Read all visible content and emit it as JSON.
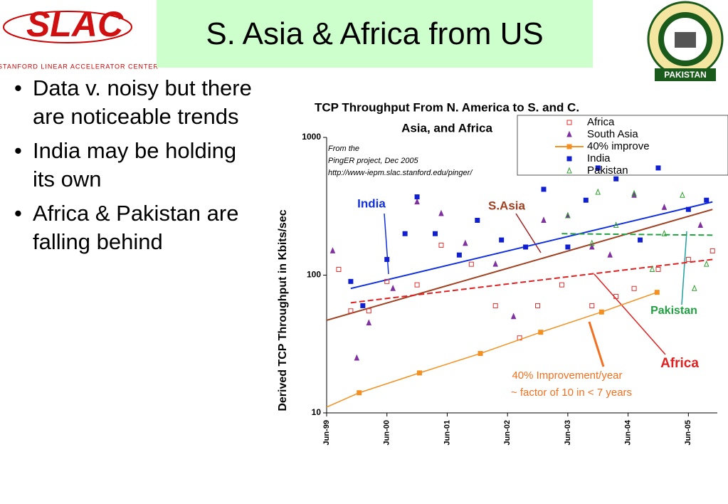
{
  "slide": {
    "title": "S. Asia & Africa from US",
    "bullets": [
      "Data v. noisy but there are noticeable trends",
      "India may be holding its own",
      "Africa & Pakistan are falling behind"
    ]
  },
  "logos": {
    "left": "SLAC",
    "left_caption": "Stanford Linear Accelerator Center",
    "right": "PAKISTAN"
  },
  "chart_data": {
    "type": "scatter",
    "title": [
      "TCP Throughput  From N. America to S. and C.",
      "Asia, and Africa"
    ],
    "y_label": "Derived TCP Throughput in Kbits/sec",
    "note": [
      "From the",
      "PingER project, Dec 2005",
      "http://www-iepm.slac.stanford.edu/pinger/"
    ],
    "annotations": [
      "40% Improvement/year",
      "~ factor of 10 in < 7 years"
    ],
    "log_y": true,
    "grid": false,
    "xlim": [
      1999.5,
      2005.98
    ],
    "ylim": [
      10,
      1000
    ],
    "xticks": [
      {
        "value": 1999.5,
        "label": "Jun-99"
      },
      {
        "value": 2000.5,
        "label": "Jun-00"
      },
      {
        "value": 2001.5,
        "label": "Jun-01"
      },
      {
        "value": 2002.5,
        "label": "Jun-02"
      },
      {
        "value": 2003.5,
        "label": "Jun-03"
      },
      {
        "value": 2004.5,
        "label": "Jun-04"
      },
      {
        "value": 2005.5,
        "label": "Jun-05"
      }
    ],
    "yticks": [
      10,
      100,
      1000
    ],
    "series": [
      {
        "name": "Africa",
        "color": "#e03030",
        "marker": "square-open",
        "x": [
          1999.7,
          1999.9,
          2000.2,
          2000.5,
          2001.0,
          2001.4,
          2001.9,
          2002.3,
          2002.7,
          2003.0,
          2003.4,
          2003.9,
          2004.3,
          2004.6,
          2005.0,
          2005.5,
          2005.9
        ],
        "values": [
          110,
          55,
          55,
          90,
          85,
          165,
          120,
          60,
          35,
          60,
          85,
          60,
          70,
          80,
          110,
          130,
          150
        ]
      },
      {
        "name": "South Asia",
        "color": "#8030a0",
        "marker": "triangle",
        "x": [
          1999.6,
          2000.0,
          2000.2,
          2000.6,
          2001.0,
          2001.4,
          2001.8,
          2002.3,
          2002.6,
          2003.1,
          2003.5,
          2003.9,
          2004.2,
          2004.6,
          2005.1,
          2005.7
        ],
        "values": [
          150,
          25,
          45,
          80,
          340,
          280,
          170,
          120,
          50,
          250,
          270,
          160,
          140,
          380,
          310,
          230
        ]
      },
      {
        "name": "40% improve",
        "color": "#f39020",
        "marker": "line-square",
        "x": [
          1999.5,
          2000.04,
          2001.04,
          2002.05,
          2003.05,
          2004.06,
          2004.98
        ],
        "values": [
          11,
          14,
          19.5,
          27,
          38.5,
          54,
          75
        ]
      },
      {
        "name": "India",
        "color": "#1020d0",
        "marker": "square",
        "x": [
          1999.9,
          2000.1,
          2000.5,
          2000.8,
          2001.0,
          2001.3,
          2001.7,
          2002.0,
          2002.4,
          2002.8,
          2003.1,
          2003.5,
          2003.8,
          2004.0,
          2004.3,
          2004.7,
          2005.0,
          2005.5,
          2005.8
        ],
        "values": [
          90,
          60,
          130,
          200,
          370,
          200,
          140,
          250,
          180,
          160,
          420,
          160,
          350,
          600,
          500,
          180,
          600,
          300,
          350
        ]
      },
      {
        "name": "Pakistan",
        "color": "#30a030",
        "marker": "triangle-open",
        "x": [
          2003.5,
          2003.9,
          2004.0,
          2004.3,
          2004.6,
          2004.9,
          2005.1,
          2005.4,
          2005.6,
          2005.8
        ],
        "values": [
          270,
          170,
          400,
          230,
          390,
          110,
          200,
          380,
          80,
          120
        ]
      }
    ],
    "trends": [
      {
        "label": "India",
        "color": "#1030e0",
        "dash": false,
        "x": [
          1999.9,
          2005.9
        ],
        "values": [
          80,
          340
        ]
      },
      {
        "label": "S.Asia",
        "color": "#a04020",
        "dash": false,
        "x": [
          1999.5,
          2005.9
        ],
        "values": [
          47,
          300
        ]
      },
      {
        "label": "Africa",
        "color": "#e02020",
        "dash": true,
        "x": [
          1999.9,
          2005.9
        ],
        "values": [
          63,
          130
        ]
      },
      {
        "label": "Pakistan",
        "color": "#20a040",
        "dash": true,
        "x": [
          2003.4,
          2005.9
        ],
        "values": [
          200,
          195
        ]
      }
    ]
  }
}
